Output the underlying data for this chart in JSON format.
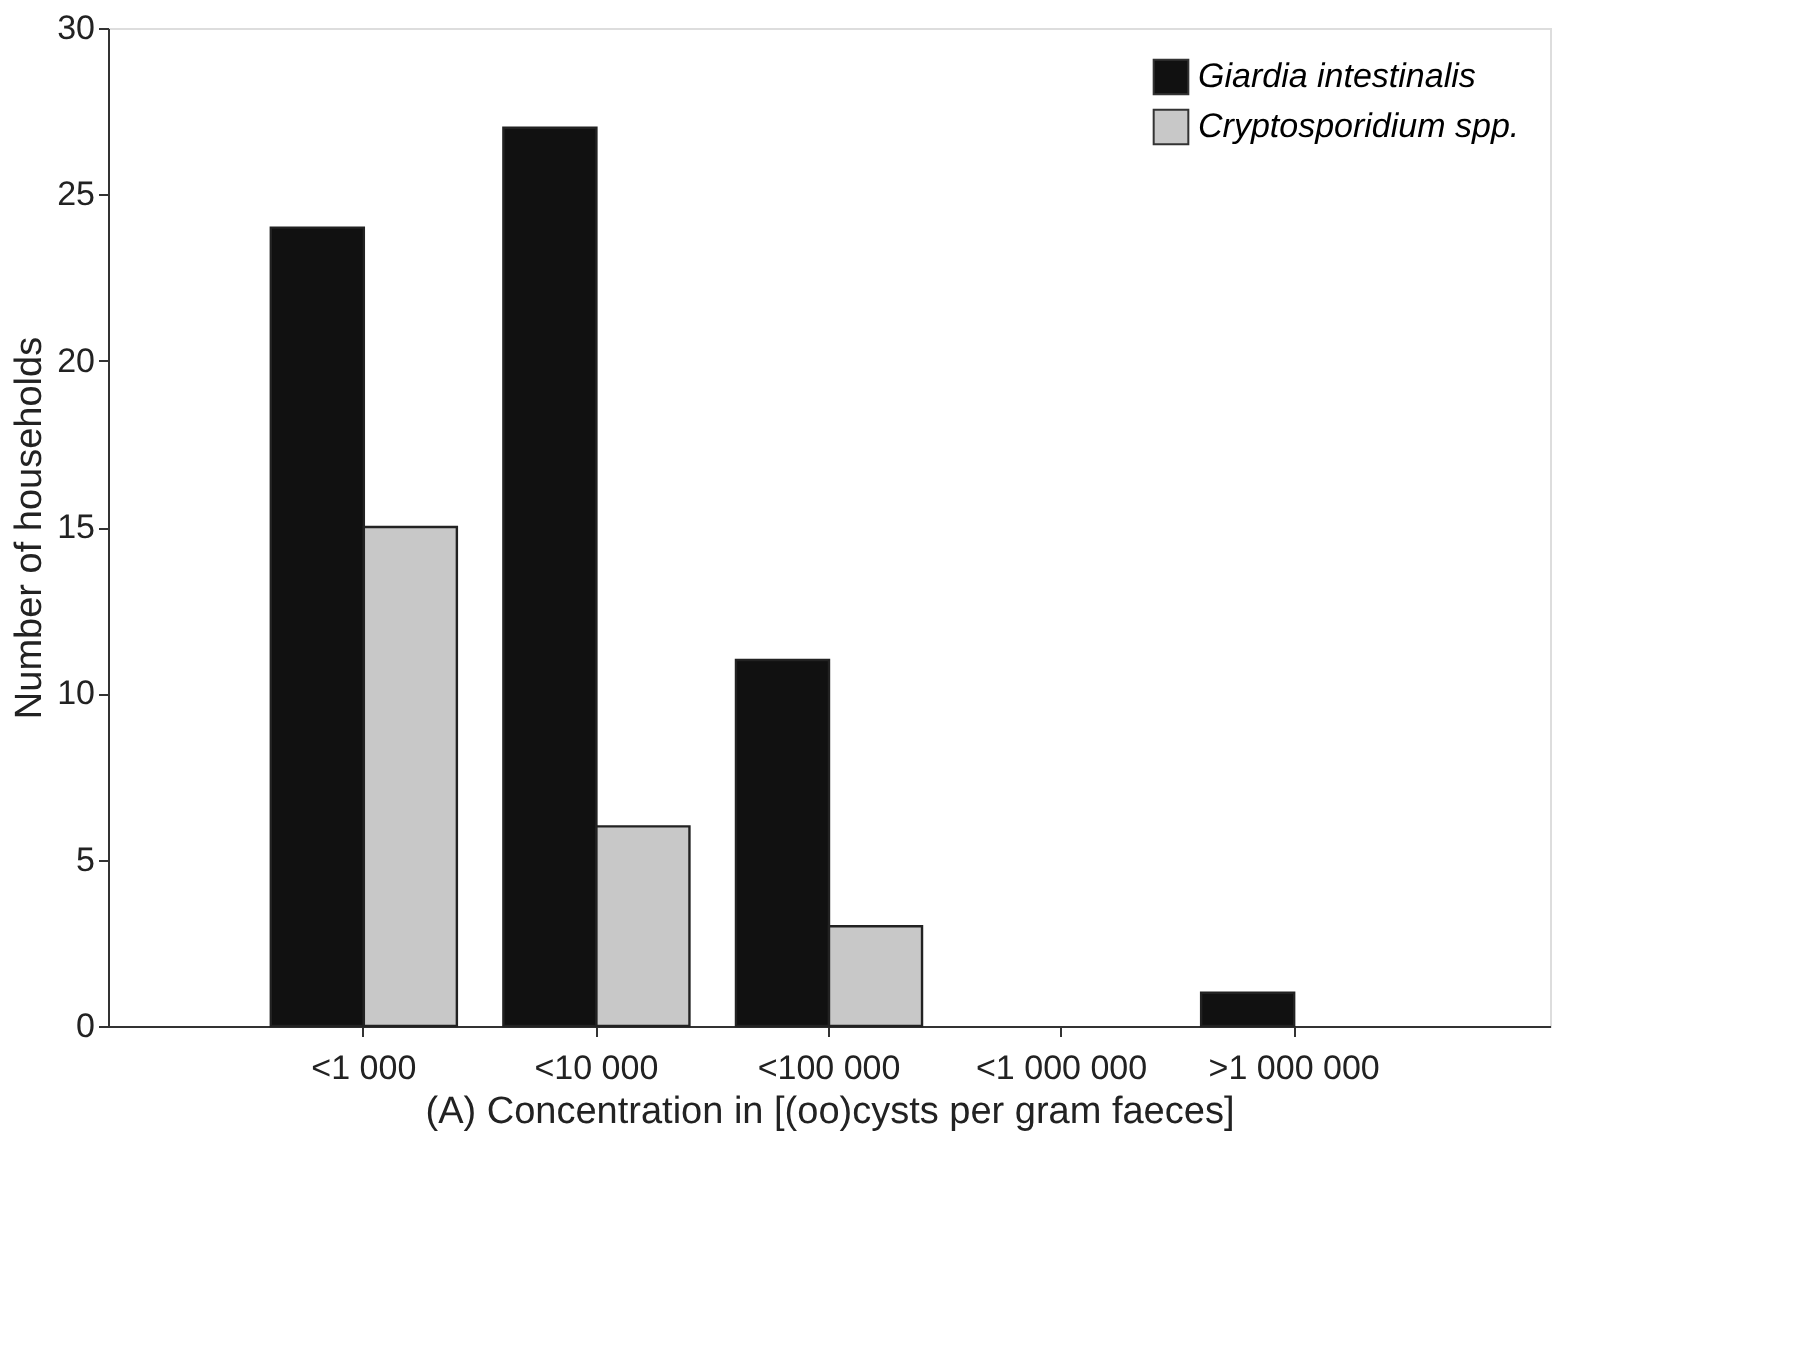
{
  "chart_data": {
    "type": "bar",
    "xlabel": "(A) Concentration in [(oo)cysts per gram faeces]",
    "ylabel": "Number of households",
    "categories": [
      "<1 000",
      "<10 000",
      "<100 000",
      "<1 000 000",
      ">1 000 000"
    ],
    "series": [
      {
        "name": "Giardia intestinalis",
        "color": "#111111",
        "values": [
          24,
          27,
          11,
          null,
          1
        ]
      },
      {
        "name": "Cryptosporidium spp.",
        "color": "#c8c8c8",
        "values": [
          15,
          6,
          3,
          null,
          null
        ]
      }
    ],
    "ylim": [
      0,
      30
    ],
    "yticks": [
      0,
      5,
      10,
      15,
      20,
      25,
      30
    ],
    "grid": false,
    "legend": "top right"
  }
}
